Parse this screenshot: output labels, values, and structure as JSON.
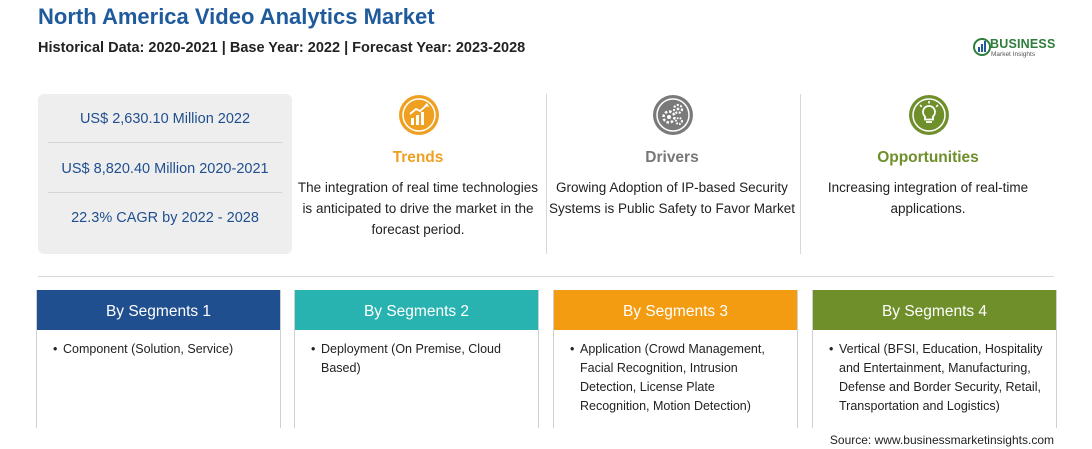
{
  "header": {
    "title": "North America Video Analytics Market",
    "subtitle": "Historical Data: 2020-2021 | Base Year: 2022 | Forecast Year: 2023-2028"
  },
  "logo": {
    "name": "BUSINESS",
    "tagline": "Market Insights",
    "color": "#2e7d3a"
  },
  "stats": [
    "US$ 2,630.10 Million 2022",
    "US$ 8,820.40 Million 2020-2021",
    "22.3% CAGR by 2022 - 2028"
  ],
  "columns": [
    {
      "icon": "chart-up-icon",
      "heading": "Trends",
      "color": "#f0a020",
      "text": "The integration of real time technologies is anticipated to drive the market in the forecast period."
    },
    {
      "icon": "gears-icon",
      "heading": "Drivers",
      "color": "#777777",
      "text": "Growing Adoption of IP-based Security Systems is Public Safety to Favor Market"
    },
    {
      "icon": "lightbulb-icon",
      "heading": "Opportunities",
      "color": "#6e8f2a",
      "text": "Increasing integration of real-time applications."
    }
  ],
  "segments": [
    {
      "label": "By Segments 1",
      "color": "#1f4f8f",
      "item": "Component (Solution, Service)"
    },
    {
      "label": "By Segments 2",
      "color": "#29b3b0",
      "item": "Deployment (On Premise, Cloud Based)"
    },
    {
      "label": "By Segments 3",
      "color": "#f39c12",
      "item": "Application (Crowd Management, Facial Recognition, Intrusion Detection, License Plate Recognition, Motion Detection)"
    },
    {
      "label": "By Segments 4",
      "color": "#6e8f2a",
      "item": "Vertical (BFSI, Education, Hospitality and Entertainment, Manufacturing, Defense and Border Security, Retail, Transportation and Logistics)"
    }
  ],
  "source": "Source: www.businessmarketinsights.com"
}
